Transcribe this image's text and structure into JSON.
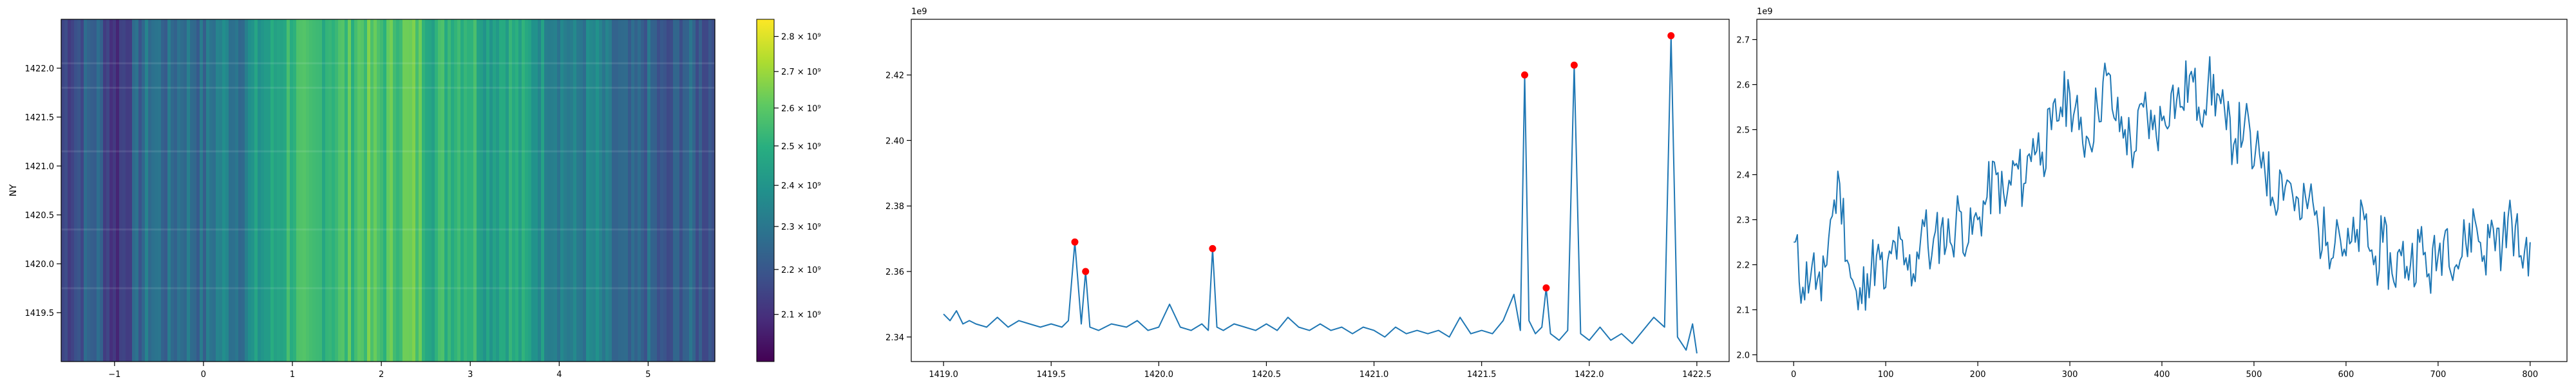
{
  "chart_data": [
    {
      "type": "heatmap",
      "title": "",
      "xlabel": "",
      "ylabel": "NY",
      "xlim": [
        -1.6,
        5.75
      ],
      "ylim": [
        1419.0,
        1422.5
      ],
      "xticks": [
        -1,
        0,
        1,
        2,
        3,
        4,
        5
      ],
      "xtick_labels": [
        "−1",
        "0",
        "1",
        "2",
        "3",
        "4",
        "5"
      ],
      "yticks": [
        1419.5,
        1420.0,
        1420.5,
        1421.0,
        1421.5,
        1422.0
      ],
      "ytick_labels": [
        "1419.5",
        "1420.0",
        "1420.5",
        "1421.0",
        "1421.5",
        "1422.0"
      ],
      "colormap": "viridis",
      "color_scale": "log",
      "color_range": [
        2000000000,
        2850000000
      ],
      "colorbar_ticks": [
        2100000000,
        2200000000,
        2300000000,
        2400000000,
        2500000000,
        2600000000,
        2700000000,
        2800000000
      ],
      "colorbar_tick_labels": [
        "2.1 × 10⁹",
        "2.2 × 10⁹",
        "2.3 × 10⁹",
        "2.4 × 10⁹",
        "2.5 × 10⁹",
        "2.6 × 10⁹",
        "2.7 × 10⁹",
        "2.8 × 10⁹"
      ],
      "column_profile": {
        "x": [
          -1.6,
          -1.4,
          -1.2,
          -1.0,
          -0.8,
          -0.6,
          -0.4,
          -0.2,
          0.0,
          0.2,
          0.4,
          0.6,
          0.8,
          1.0,
          1.2,
          1.4,
          1.6,
          1.8,
          2.0,
          2.2,
          2.4,
          2.6,
          2.8,
          3.0,
          3.2,
          3.4,
          3.6,
          3.8,
          4.0,
          4.2,
          4.4,
          4.6,
          4.8,
          5.0,
          5.2,
          5.4,
          5.6
        ],
        "values": [
          2150000000,
          2200000000,
          2250000000,
          2100000000,
          2200000000,
          2300000000,
          2250000000,
          2300000000,
          2250000000,
          2350000000,
          2300000000,
          2400000000,
          2450000000,
          2550000000,
          2500000000,
          2550000000,
          2550000000,
          2600000000,
          2550000000,
          2600000000,
          2600000000,
          2500000000,
          2550000000,
          2550000000,
          2450000000,
          2500000000,
          2450000000,
          2400000000,
          2350000000,
          2300000000,
          2350000000,
          2250000000,
          2200000000,
          2250000000,
          2150000000,
          2250000000,
          2200000000
        ]
      }
    },
    {
      "type": "line",
      "title": "",
      "xlabel": "",
      "ylabel": "",
      "offset_text": "1e9",
      "xlim": [
        1418.85,
        1422.65
      ],
      "ylim": [
        2.3325,
        2.437
      ],
      "xticks": [
        1419.0,
        1419.5,
        1420.0,
        1420.5,
        1421.0,
        1421.5,
        1422.0,
        1422.5
      ],
      "xtick_labels": [
        "1419.0",
        "1419.5",
        "1420.0",
        "1420.5",
        "1421.0",
        "1421.5",
        "1422.0",
        "1422.5"
      ],
      "yticks": [
        2.34,
        2.36,
        2.38,
        2.4,
        2.42
      ],
      "ytick_labels": [
        "2.34",
        "2.36",
        "2.38",
        "2.40",
        "2.42"
      ],
      "series": [
        {
          "color": "#1f77b4",
          "x": [
            1419.0,
            1419.03,
            1419.06,
            1419.09,
            1419.12,
            1419.15,
            1419.2,
            1419.25,
            1419.3,
            1419.35,
            1419.4,
            1419.45,
            1419.5,
            1419.55,
            1419.58,
            1419.61,
            1419.64,
            1419.66,
            1419.68,
            1419.72,
            1419.78,
            1419.85,
            1419.9,
            1419.95,
            1420.0,
            1420.05,
            1420.1,
            1420.15,
            1420.2,
            1420.23,
            1420.25,
            1420.27,
            1420.3,
            1420.35,
            1420.4,
            1420.45,
            1420.5,
            1420.55,
            1420.6,
            1420.65,
            1420.7,
            1420.75,
            1420.8,
            1420.85,
            1420.9,
            1420.95,
            1421.0,
            1421.05,
            1421.1,
            1421.15,
            1421.2,
            1421.25,
            1421.3,
            1421.35,
            1421.4,
            1421.45,
            1421.5,
            1421.55,
            1421.6,
            1421.65,
            1421.68,
            1421.7,
            1421.72,
            1421.75,
            1421.78,
            1421.8,
            1421.82,
            1421.86,
            1421.9,
            1421.93,
            1421.96,
            1422.0,
            1422.05,
            1422.1,
            1422.15,
            1422.2,
            1422.25,
            1422.3,
            1422.35,
            1422.38,
            1422.41,
            1422.45,
            1422.48,
            1422.5
          ],
          "y": [
            2.347,
            2.345,
            2.348,
            2.344,
            2.345,
            2.344,
            2.343,
            2.346,
            2.343,
            2.345,
            2.344,
            2.343,
            2.344,
            2.343,
            2.345,
            2.369,
            2.344,
            2.36,
            2.343,
            2.342,
            2.344,
            2.343,
            2.345,
            2.342,
            2.343,
            2.35,
            2.343,
            2.342,
            2.344,
            2.342,
            2.367,
            2.343,
            2.342,
            2.344,
            2.343,
            2.342,
            2.344,
            2.342,
            2.346,
            2.343,
            2.342,
            2.344,
            2.342,
            2.343,
            2.341,
            2.343,
            2.342,
            2.34,
            2.343,
            2.341,
            2.342,
            2.341,
            2.342,
            2.34,
            2.346,
            2.341,
            2.342,
            2.341,
            2.345,
            2.353,
            2.342,
            2.42,
            2.345,
            2.341,
            2.343,
            2.355,
            2.341,
            2.339,
            2.342,
            2.423,
            2.341,
            2.339,
            2.343,
            2.339,
            2.341,
            2.338,
            2.342,
            2.346,
            2.343,
            2.432,
            2.34,
            2.336,
            2.344,
            2.335
          ]
        }
      ],
      "peaks": {
        "color": "#ff0000",
        "x": [
          1419.61,
          1419.66,
          1420.25,
          1421.7,
          1421.8,
          1421.93,
          1422.38
        ],
        "y": [
          2.369,
          2.36,
          2.367,
          2.42,
          2.355,
          2.423,
          2.432
        ]
      }
    },
    {
      "type": "line",
      "title": "",
      "xlabel": "",
      "ylabel": "",
      "offset_text": "1e9",
      "xlim": [
        -40,
        840
      ],
      "ylim": [
        1.985,
        2.745
      ],
      "xticks": [
        0,
        100,
        200,
        300,
        400,
        500,
        600,
        700,
        800
      ],
      "xtick_labels": [
        "0",
        "100",
        "200",
        "300",
        "400",
        "500",
        "600",
        "700",
        "800"
      ],
      "yticks": [
        2.0,
        2.1,
        2.2,
        2.3,
        2.4,
        2.5,
        2.6,
        2.7
      ],
      "ytick_labels": [
        "2.0",
        "2.1",
        "2.2",
        "2.3",
        "2.4",
        "2.5",
        "2.6",
        "2.7"
      ],
      "series": [
        {
          "color": "#1f77b4",
          "x": [
            0,
            10,
            20,
            30,
            40,
            50,
            60,
            70,
            80,
            90,
            100,
            110,
            120,
            130,
            140,
            150,
            160,
            170,
            180,
            190,
            200,
            210,
            220,
            230,
            240,
            250,
            260,
            270,
            280,
            290,
            300,
            310,
            320,
            330,
            340,
            350,
            360,
            370,
            380,
            390,
            400,
            410,
            420,
            430,
            440,
            450,
            460,
            470,
            480,
            490,
            500,
            510,
            520,
            530,
            540,
            550,
            560,
            570,
            580,
            590,
            600,
            610,
            620,
            630,
            640,
            650,
            660,
            670,
            680,
            690,
            700,
            710,
            720,
            730,
            740,
            750,
            760,
            770,
            780,
            790,
            800
          ],
          "y": [
            2.25,
            2.15,
            2.2,
            2.12,
            2.3,
            2.38,
            2.2,
            2.1,
            2.18,
            2.22,
            2.15,
            2.25,
            2.2,
            2.18,
            2.3,
            2.22,
            2.28,
            2.25,
            2.32,
            2.25,
            2.3,
            2.35,
            2.4,
            2.33,
            2.42,
            2.38,
            2.48,
            2.45,
            2.5,
            2.55,
            2.58,
            2.5,
            2.48,
            2.55,
            2.62,
            2.52,
            2.5,
            2.45,
            2.55,
            2.5,
            2.52,
            2.58,
            2.55,
            2.62,
            2.55,
            2.6,
            2.58,
            2.5,
            2.48,
            2.52,
            2.42,
            2.45,
            2.35,
            2.4,
            2.38,
            2.3,
            2.35,
            2.28,
            2.25,
            2.3,
            2.22,
            2.25,
            2.3,
            2.2,
            2.25,
            2.18,
            2.22,
            2.2,
            2.25,
            2.18,
            2.22,
            2.28,
            2.2,
            2.25,
            2.3,
            2.22,
            2.28,
            2.25,
            2.3,
            2.22,
            2.25
          ]
        }
      ]
    }
  ]
}
